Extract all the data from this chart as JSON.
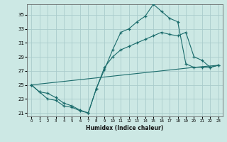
{
  "xlabel": "Humidex (Indice chaleur)",
  "bg_color": "#cce8e4",
  "grid_color": "#aacccc",
  "line_color": "#1a6b6b",
  "xlim": [
    -0.5,
    23.5
  ],
  "ylim": [
    20.5,
    36.5
  ],
  "xticks": [
    0,
    1,
    2,
    3,
    4,
    5,
    6,
    7,
    8,
    9,
    10,
    11,
    12,
    13,
    14,
    15,
    16,
    17,
    18,
    19,
    20,
    21,
    22,
    23
  ],
  "yticks": [
    21,
    23,
    25,
    27,
    29,
    31,
    33,
    35
  ],
  "line1_x": [
    0,
    1,
    2,
    3,
    4,
    5,
    6,
    7,
    8,
    9,
    10,
    11,
    12,
    13,
    14,
    15,
    16,
    17,
    18,
    19,
    20,
    21,
    22,
    23
  ],
  "line1_y": [
    25.0,
    24.0,
    23.8,
    23.2,
    22.4,
    22.0,
    21.4,
    21.0,
    24.5,
    27.2,
    30.0,
    32.5,
    33.0,
    34.0,
    34.8,
    36.5,
    35.5,
    34.5,
    34.0,
    28.0,
    27.5,
    27.5,
    27.5,
    27.8
  ],
  "line2_x": [
    0,
    1,
    2,
    3,
    4,
    5,
    6,
    7,
    8,
    9,
    10,
    11,
    12,
    13,
    14,
    15,
    16,
    17,
    18,
    19,
    20,
    21,
    22,
    23
  ],
  "line2_y": [
    25.0,
    24.0,
    23.0,
    22.8,
    22.0,
    21.8,
    21.3,
    21.0,
    24.5,
    27.5,
    29.0,
    30.0,
    30.5,
    31.0,
    31.5,
    32.0,
    32.5,
    32.2,
    32.0,
    32.5,
    29.0,
    28.5,
    27.5,
    27.8
  ],
  "line3_x": [
    0,
    4,
    8,
    12,
    16,
    20,
    23
  ],
  "line3_y": [
    25.0,
    25.5,
    26.0,
    26.5,
    27.0,
    27.5,
    27.8
  ]
}
